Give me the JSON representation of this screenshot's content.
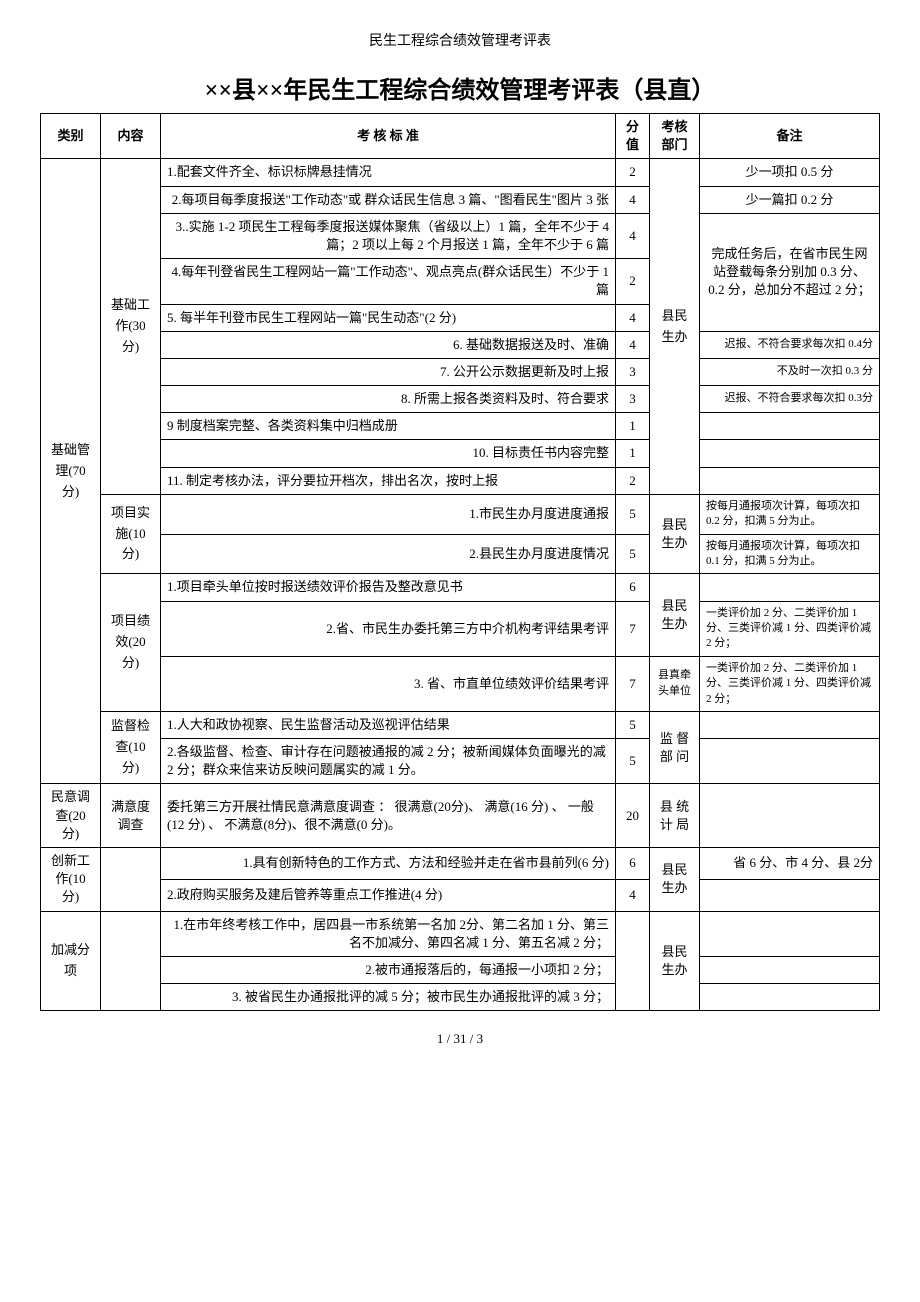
{
  "header": "民生工程综合绩效管理考评表",
  "title": "××县××年民生工程综合绩效管理考评表（县直）",
  "columns": {
    "category": "类别",
    "content": "内容",
    "standard": "考 核 标 准",
    "score": "分值",
    "dept": "考核部门",
    "note": "备注"
  },
  "cat1": "基础管理(70 分)",
  "sub1a": "基础工作(30 分)",
  "sub1b": "项目实施(10 分)",
  "sub1c": "项目绩效(20 分)",
  "sub1d": "监督检查(10 分)",
  "cat2": "民意调查(20 分)",
  "sub2a": "满意度调查",
  "cat3": "创新工作(10 分)",
  "cat4": "加减分项",
  "dept1": "县民生办",
  "dept2": "县民生办",
  "dept3": "县民生办",
  "dept4": "县真牵头单位",
  "dept5": "监 督部 问",
  "dept6": "县 统计 局",
  "dept7": "县民生办",
  "dept8": "县民生办",
  "r1": {
    "std": "1.配套文件齐全、标识标牌悬挂情况",
    "score": "2",
    "note": "少一项扣 0.5 分"
  },
  "r2": {
    "std": "2.每项目每季度报送\"工作动态\"或 群众话民生信息 3 篇、\"图看民生\"图片 3 张",
    "score": "4",
    "note": "少一篇扣 0.2 分"
  },
  "r3": {
    "std": "3..实施 1-2 项民生工程每季度报送媒体聚焦（省级以上）1 篇，全年不少于 4 篇；2 项以上每 2 个月报送 1 篇，全年不少于 6 篇",
    "score": "4"
  },
  "note_merge": "完成任务后，在省市民生网站登载每条分别加 0.3 分、0.2 分，总加分不超过 2 分；",
  "r4": {
    "std": "4.每年刊登省民生工程网站一篇\"工作动态\"、观点亮点(群众话民生）不少于 1 篇",
    "score": "2"
  },
  "r5": {
    "std": "5. 每半年刊登市民生工程网站一篇\"民生动态\"(2 分)",
    "score": "4"
  },
  "r6": {
    "std": "6. 基础数据报送及时、准确",
    "score": "4",
    "note": "迟报、不符合要求每次扣 0.4分"
  },
  "r7": {
    "std": "7. 公开公示数据更新及时上报",
    "score": "3",
    "note": "不及时一次扣 0.3 分"
  },
  "r8": {
    "std": "8. 所需上报各类资料及时、符合要求",
    "score": "3",
    "note": "迟报、不符合要求每次扣 0.3分"
  },
  "r9": {
    "std": "9 制度档案完整、各类资料集中归档成册",
    "score": "1",
    "note": ""
  },
  "r10": {
    "std": "10. 目标责任书内容完整",
    "score": "1",
    "note": ""
  },
  "r11": {
    "std": "11. 制定考核办法，评分要拉开档次，排出名次，按时上报",
    "score": "2",
    "note": ""
  },
  "r12": {
    "std": "1.市民生办月度进度通报",
    "score": "5",
    "note": "按每月通报项次计算，每项次扣 0.2 分，扣满 5 分为止。"
  },
  "r13": {
    "std": "2.县民生办月度进度情况",
    "score": "5",
    "note": "按每月通报项次计算，每项次扣 0.1 分，扣满 5 分为止。"
  },
  "r14": {
    "std": "1.项目牵头单位按时报送绩效评价报告及整改意见书",
    "score": "6",
    "note": ""
  },
  "r15": {
    "std": "2.省、市民生办委托第三方中介机构考评结果考评",
    "score": "7",
    "note": "一类评价加 2 分、二类评价加 1 分、三类评价减 1 分、四类评价减 2 分；"
  },
  "r16": {
    "std": "3. 省、市直单位绩效评价结果考评",
    "score": "7",
    "note": "一类评价加 2 分、二类评价加 1 分、三类评价减 1 分、四类评价减 2 分；"
  },
  "r17": {
    "std": "1.人大和政协视察、民生监督活动及巡视评估结果",
    "score": "5",
    "note": ""
  },
  "r18": {
    "std": "2.各级监督、检查、审计存在问题被通报的减 2 分；被新闻媒体负面曝光的减 2 分；群众来信来访反映问题属实的减 1 分。",
    "score": "5",
    "note": ""
  },
  "r19": {
    "std": "委托第三方开展社情民意满意度调查 ：  很满意(20分)、  满意(16 分) 、 一般(12 分) 、 不满意(8分)、很不满意(0 分)。",
    "score": "20",
    "note": ""
  },
  "r20": {
    "std": "1.具有创新特色的工作方式、方法和经验并走在省市县前列(6 分)",
    "score": "6",
    "note": "省 6 分、市 4 分、县 2分"
  },
  "r21": {
    "std": "2.政府购买服务及建后管养等重点工作推进(4 分)",
    "score": "4",
    "note": ""
  },
  "r22": {
    "std": "1.在市年终考核工作中，居四县一市系统第一名加 2分、第二名加 1 分、第三名不加减分、第四名减 1 分、第五名减 2 分；",
    "note": ""
  },
  "r23": {
    "std": "2.被市通报落后的，每通报一小项扣 2 分；",
    "note": ""
  },
  "r24": {
    "std": "3. 被省民生办通报批评的减 5 分；被市民生办通报批评的减 3 分；",
    "note": ""
  },
  "footer": "1 / 31 / 3"
}
